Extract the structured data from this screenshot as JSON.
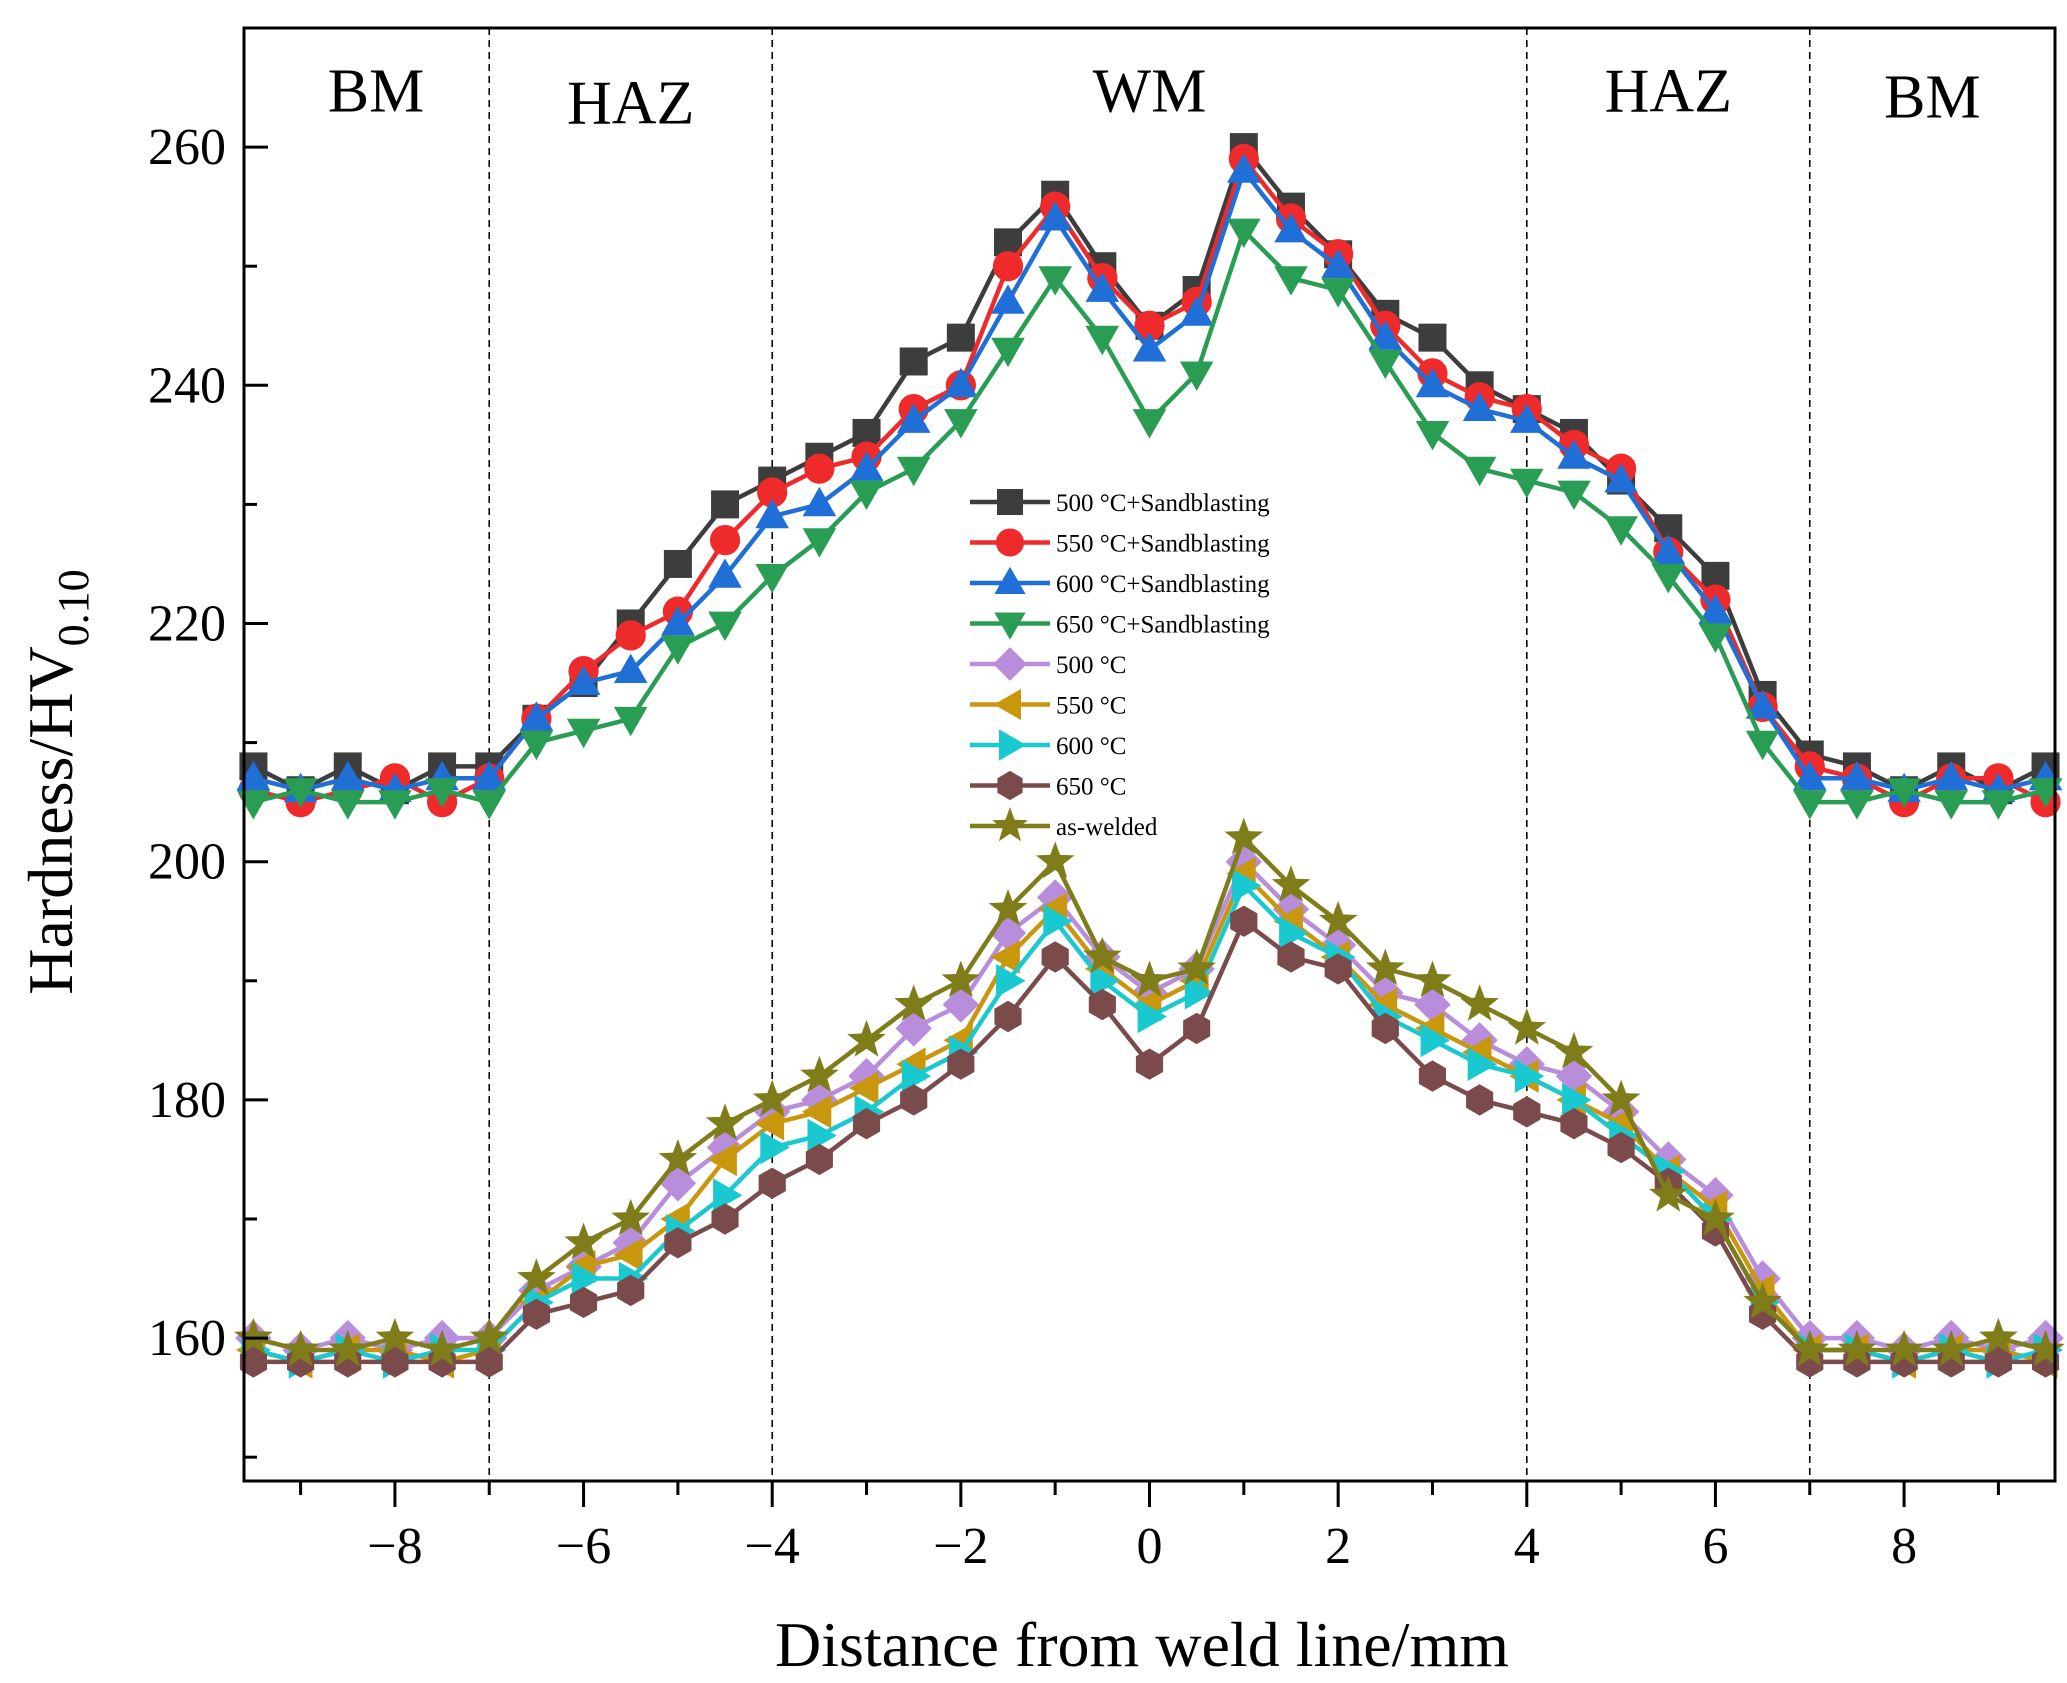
{
  "chart_data": {
    "type": "line",
    "xlabel": "Distance from weld line/mm",
    "ylabel": {
      "main": "Hardness/HV",
      "sub": "0.10"
    },
    "xlim": [
      -9.6,
      9.6
    ],
    "ylim": [
      148,
      270
    ],
    "xticks": [
      {
        "value": -8,
        "label": "−8"
      },
      {
        "value": -6,
        "label": "−6"
      },
      {
        "value": -4,
        "label": "−4"
      },
      {
        "value": -2,
        "label": "−2"
      },
      {
        "value": 0,
        "label": "0"
      },
      {
        "value": 2,
        "label": "2"
      },
      {
        "value": 4,
        "label": "4"
      },
      {
        "value": 6,
        "label": "6"
      },
      {
        "value": 8,
        "label": "8"
      }
    ],
    "yticks": [
      {
        "value": 160,
        "label": "160"
      },
      {
        "value": 180,
        "label": "180"
      },
      {
        "value": 200,
        "label": "200"
      },
      {
        "value": 220,
        "label": "220"
      },
      {
        "value": 240,
        "label": "240"
      },
      {
        "value": 260,
        "label": "260"
      }
    ],
    "zone_boundaries": [
      -7,
      -4,
      4,
      7
    ],
    "zones": [
      {
        "label": "BM",
        "x": -8.2,
        "y": 263
      },
      {
        "label": "HAZ",
        "x": -5.5,
        "y": 262
      },
      {
        "label": "WM",
        "x": 0,
        "y": 263
      },
      {
        "label": "HAZ",
        "x": 5.5,
        "y": 263
      },
      {
        "label": "BM",
        "x": 8.3,
        "y": 262.5
      }
    ],
    "x": [
      -9.5,
      -9,
      -8.5,
      -8,
      -7.5,
      -7,
      -6.5,
      -6,
      -5.5,
      -5,
      -4.5,
      -4,
      -3.5,
      -3,
      -2.5,
      -2,
      -1.5,
      -1,
      -0.5,
      0,
      0.5,
      1,
      1.5,
      2,
      2.5,
      3,
      3.5,
      4,
      4.5,
      5,
      5.5,
      6,
      6.5,
      7,
      7.5,
      8,
      8.5,
      9,
      9.5
    ],
    "series": [
      {
        "name": "500 °C+Sandblasting",
        "color": "#3d3d3d",
        "marker": "square",
        "values": [
          208,
          206,
          208,
          206,
          208,
          208,
          212,
          215,
          220,
          225,
          230,
          232,
          234,
          236,
          242,
          244,
          252,
          256,
          250,
          245,
          248,
          260,
          255,
          251,
          246,
          244,
          240,
          238,
          236,
          232,
          228,
          224,
          214,
          209,
          208,
          206,
          208,
          206,
          208
        ]
      },
      {
        "name": "550 °C+Sandblasting",
        "color": "#ee2a2a",
        "marker": "circle",
        "values": [
          206,
          205,
          206,
          207,
          205,
          207,
          212,
          216,
          219,
          221,
          227,
          231,
          233,
          234,
          238,
          240,
          250,
          255,
          249,
          245,
          247,
          259,
          254,
          251,
          245,
          241,
          239,
          238,
          235,
          233,
          226,
          222,
          213,
          208,
          207,
          205,
          207,
          207,
          205
        ]
      },
      {
        "name": "600 °C+Sandblasting",
        "color": "#1f6fd6",
        "marker": "triangle-up",
        "values": [
          207,
          206,
          207,
          206,
          207,
          207,
          212,
          215,
          216,
          220,
          224,
          229,
          230,
          233,
          237,
          240,
          247,
          254,
          248,
          243,
          246,
          258,
          253,
          250,
          244,
          240,
          238,
          237,
          234,
          232,
          226,
          221,
          213,
          207,
          207,
          206,
          207,
          206,
          207
        ]
      },
      {
        "name": "650 °C+Sandblasting",
        "color": "#2a9d55",
        "marker": "triangle-down",
        "values": [
          205,
          206,
          205,
          205,
          206,
          205,
          210,
          211,
          212,
          218,
          220,
          224,
          227,
          231,
          233,
          237,
          243,
          249,
          244,
          237,
          241,
          253,
          249,
          248,
          242,
          236,
          233,
          232,
          231,
          228,
          224,
          219,
          210,
          205,
          205,
          206,
          205,
          205,
          206
        ]
      },
      {
        "name": "500 °C",
        "color": "#b88ddc",
        "marker": "diamond",
        "values": [
          160,
          159,
          160,
          159,
          160,
          160,
          164,
          166,
          168,
          173,
          176,
          179,
          180,
          182,
          186,
          188,
          194,
          197,
          192,
          189,
          191,
          200,
          196,
          193,
          189,
          188,
          185,
          183,
          182,
          179,
          175,
          172,
          165,
          160,
          160,
          159,
          160,
          159,
          160
        ]
      },
      {
        "name": "550 °C",
        "color": "#c9970e",
        "marker": "triangle-left",
        "values": [
          159,
          158,
          159,
          159,
          158,
          159,
          163,
          166,
          167,
          170,
          175,
          178,
          179,
          181,
          183,
          185,
          192,
          196,
          191,
          188,
          190,
          199,
          195,
          192,
          188,
          186,
          184,
          182,
          180,
          178,
          174,
          171,
          164,
          159,
          159,
          158,
          159,
          159,
          158
        ]
      },
      {
        "name": "600 °C",
        "color": "#19c9cf",
        "marker": "triangle-right",
        "values": [
          159,
          158,
          159,
          158,
          159,
          159,
          163,
          165,
          165,
          169,
          172,
          176,
          177,
          179,
          182,
          184,
          190,
          195,
          190,
          187,
          189,
          198,
          194,
          192,
          187,
          185,
          183,
          182,
          180,
          177,
          174,
          170,
          163,
          159,
          159,
          158,
          159,
          158,
          159
        ]
      },
      {
        "name": "650 °C",
        "color": "#7b4a4a",
        "marker": "hexagon",
        "values": [
          158,
          158,
          158,
          158,
          158,
          158,
          162,
          163,
          164,
          168,
          170,
          173,
          175,
          178,
          180,
          183,
          187,
          192,
          188,
          183,
          186,
          195,
          192,
          191,
          186,
          182,
          180,
          179,
          178,
          176,
          173,
          169,
          162,
          158,
          158,
          158,
          158,
          158,
          158
        ]
      },
      {
        "name": "as-welded",
        "color": "#7f7d1a",
        "marker": "star",
        "values": [
          160,
          159,
          159,
          160,
          159,
          160,
          165,
          168,
          170,
          175,
          178,
          180,
          182,
          185,
          188,
          190,
          196,
          200,
          192,
          190,
          191,
          202,
          198,
          195,
          191,
          190,
          188,
          186,
          184,
          180,
          172,
          170,
          163,
          159,
          159,
          159,
          159,
          160,
          159
        ]
      }
    ]
  }
}
